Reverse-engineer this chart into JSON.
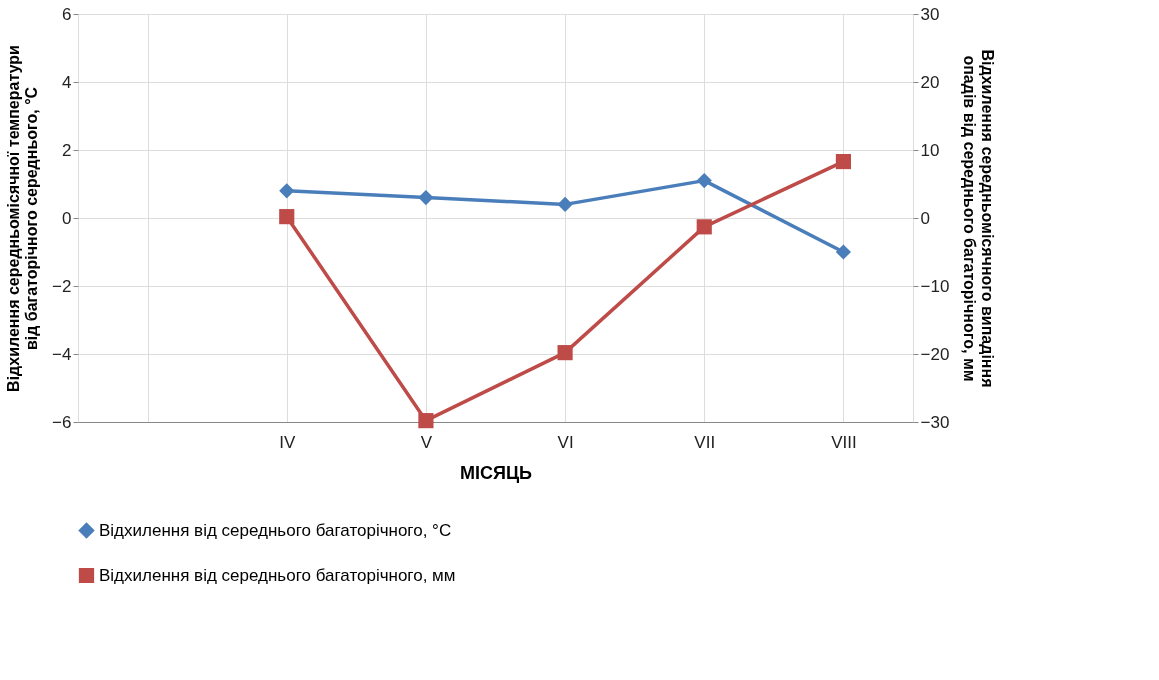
{
  "chart_data": {
    "type": "line",
    "xlabel": "МІСЯЦЬ",
    "ylabel": "Відхилення середньомісячної температури\nвід багаторічного середнього, °C",
    "y2label": "Відхилення середньомісячного випадіння\nопадів від середнього багаторічного, мм",
    "categories": [
      null,
      "IV",
      "V",
      "VI",
      "VII",
      "VIII"
    ],
    "series": [
      {
        "name": "Відхилення від середнього багаторічного, °C",
        "color": "#4a7ebb",
        "marker": "diamond",
        "values": [
          null,
          0.8,
          0.6,
          0.4,
          1.1,
          -1.0
        ]
      },
      {
        "name": "Відхилення від середнього багаторічного, мм",
        "color": "#be4b48",
        "marker": "square",
        "axis": "y2",
        "values": [
          null,
          0.2,
          -29.8,
          -19.8,
          -1.3,
          8.3
        ]
      }
    ],
    "ylim": [
      -6,
      6
    ],
    "yticks": [
      -6,
      -4,
      -2,
      0,
      2,
      4,
      6
    ],
    "y2lim": [
      -30,
      30
    ],
    "y2ticks": [
      -30,
      -20,
      -10,
      0,
      10,
      20,
      30
    ],
    "grid": true,
    "legend": "bottom"
  }
}
